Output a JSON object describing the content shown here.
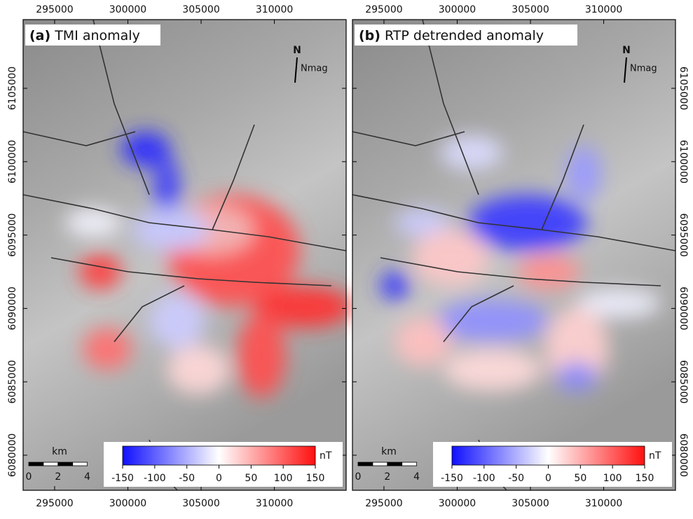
{
  "axes": {
    "xlim": [
      292850,
      314900
    ],
    "ylim": [
      6077610,
      6109680
    ],
    "xticks": [
      295000,
      300000,
      305000,
      310000
    ],
    "yticks": [
      6080000,
      6085000,
      6090000,
      6095000,
      6100000,
      6105000
    ]
  },
  "panels": [
    {
      "label": "(a)",
      "title": "TMI anomaly"
    },
    {
      "label": "(b)",
      "title": "RTP detrended anomaly"
    }
  ],
  "colorbar": {
    "ticks": [
      -150,
      -100,
      -50,
      0,
      50,
      100,
      150
    ],
    "unit": "nT"
  },
  "scale_bar": {
    "unit": "km",
    "ticks": [
      0,
      2,
      4
    ]
  },
  "north_arrow": {
    "north": "N",
    "magnetic": "Nmag"
  }
}
